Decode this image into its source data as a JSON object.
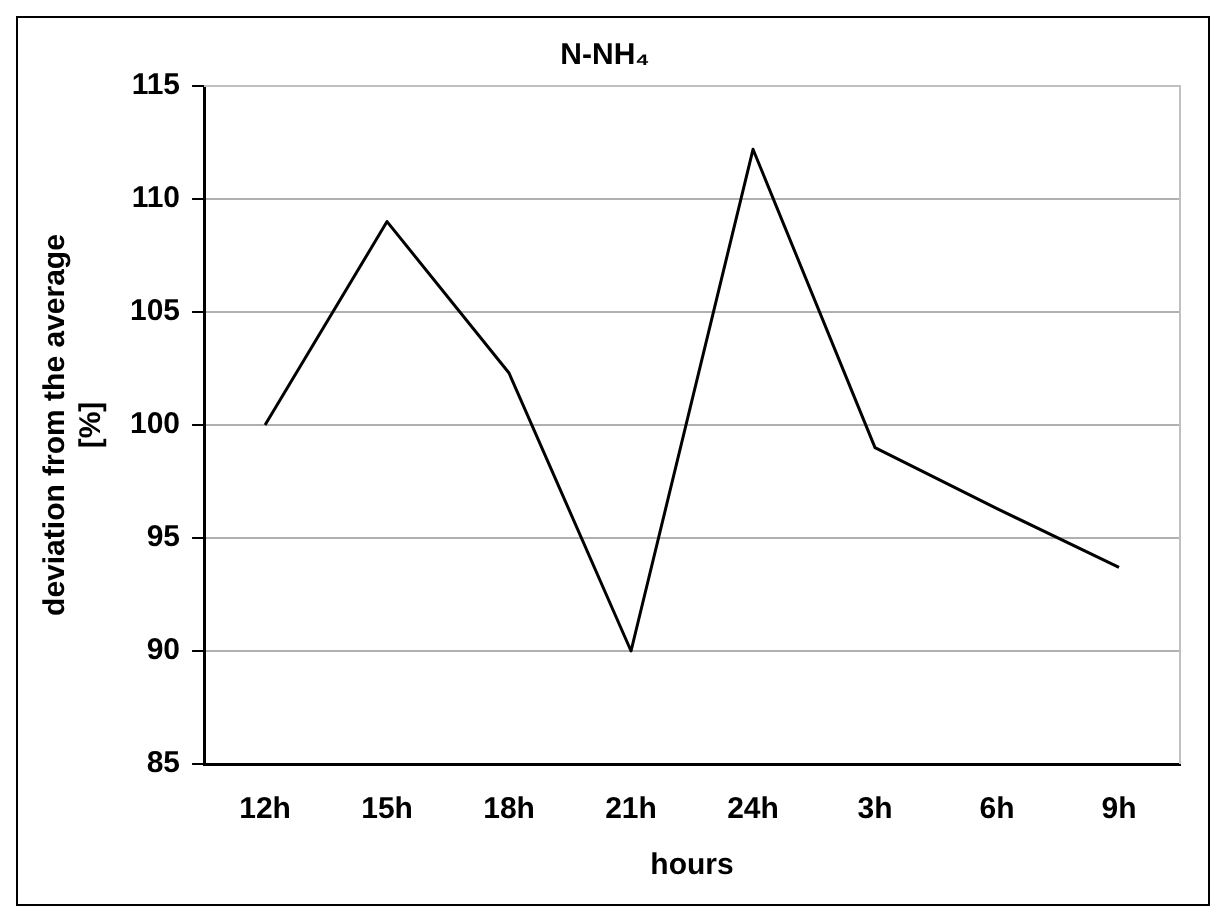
{
  "chart_data": {
    "type": "line",
    "title": "N-NH₄",
    "xlabel": "hours",
    "ylabel": "deviation from the average\n[%]",
    "categories": [
      "12h",
      "15h",
      "18h",
      "21h",
      "24h",
      "3h",
      "6h",
      "9h"
    ],
    "series": [
      {
        "color": "#000000",
        "values": [
          100,
          109,
          102.3,
          90,
          112.2,
          99,
          96.3,
          93.7
        ]
      }
    ],
    "ylim": [
      85,
      115
    ],
    "yticks": [
      85,
      90,
      95,
      100,
      105,
      110,
      115
    ],
    "grid": "y",
    "legend": false,
    "marker": "none",
    "line_style": "solid"
  }
}
